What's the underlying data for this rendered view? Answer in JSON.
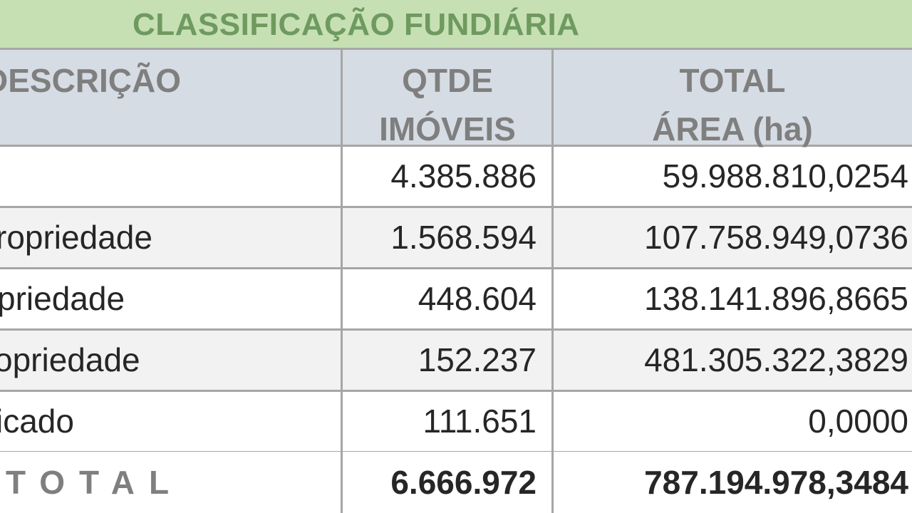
{
  "title": "CLASSIFICAÇÃO FUNDIÁRIA",
  "headers": {
    "descricao": "DESCRIÇÃO",
    "qtde_line1": "QTDE",
    "qtde_line2": "IMÓVEIS",
    "total_line1": "TOTAL",
    "total_line2": "ÁREA (ha)"
  },
  "rows": [
    {
      "descricao": "",
      "qtde": "4.385.886",
      "area": "59.988.810,0254"
    },
    {
      "descricao": "ropriedade",
      "qtde": "1.568.594",
      "area": "107.758.949,0736"
    },
    {
      "descricao": "priedade",
      "qtde": "448.604",
      "area": "138.141.896,8665"
    },
    {
      "descricao": "opriedade",
      "qtde": "152.237",
      "area": "481.305.322,3829"
    },
    {
      "descricao": "icado",
      "qtde": "111.651",
      "area": "0,0000"
    }
  ],
  "total": {
    "label": "TOTAL",
    "qtde": "6.666.972",
    "area": "787.194.978,3484"
  },
  "colors": {
    "title_bg": "#c6e0b4",
    "title_text": "#6f9a5f",
    "header_bg": "#d6dce4",
    "header_text": "#7f7f7f",
    "alt_row_bg": "#f2f2f2",
    "grid": "#a6a6a6"
  }
}
